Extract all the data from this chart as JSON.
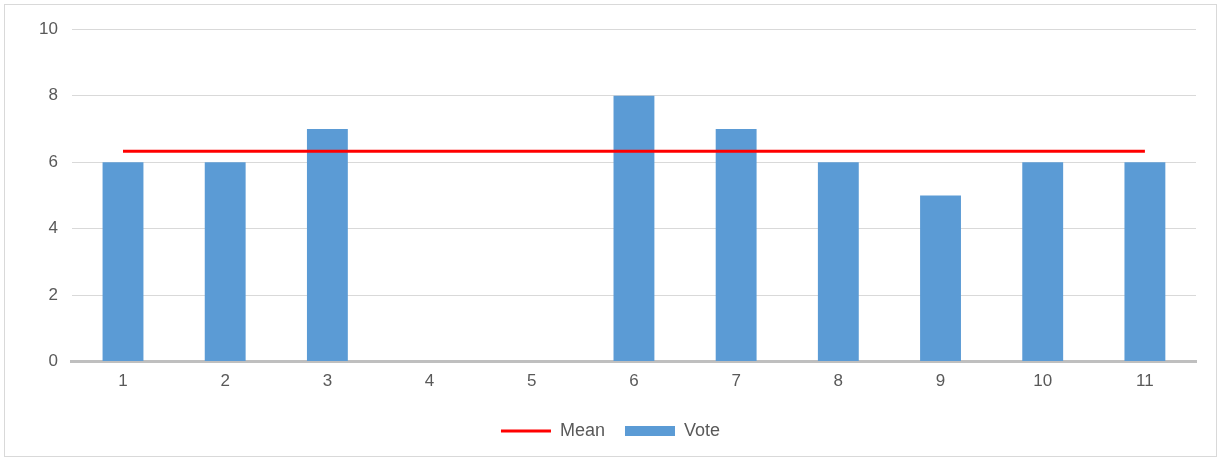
{
  "chart_data": {
    "type": "bar",
    "categories": [
      "1",
      "2",
      "3",
      "4",
      "5",
      "6",
      "7",
      "8",
      "9",
      "10",
      "11"
    ],
    "series": [
      {
        "name": "Vote",
        "color": "#5b9bd5",
        "values": [
          6,
          6,
          7,
          0,
          0,
          8,
          7,
          6,
          5,
          6,
          6
        ]
      },
      {
        "name": "Mean",
        "type": "line",
        "color": "#ff0000",
        "values": [
          6.33,
          6.33,
          6.33,
          6.33,
          6.33,
          6.33,
          6.33,
          6.33,
          6.33,
          6.33,
          6.33
        ]
      }
    ],
    "ylim": [
      0,
      10
    ],
    "yticks": [
      0,
      2,
      4,
      6,
      8,
      10
    ],
    "grid": "y",
    "legend": "bottom",
    "marker": "none",
    "line_style": "solid"
  }
}
